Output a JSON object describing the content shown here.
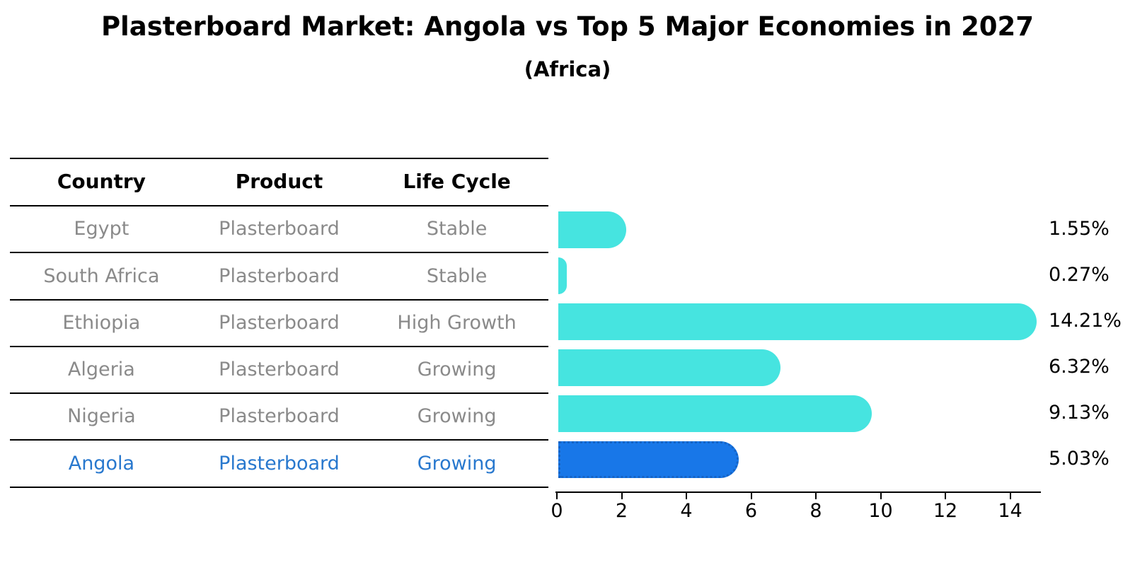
{
  "title": "Plasterboard Market: Angola vs Top 5 Major Economies in 2027",
  "subtitle": "(Africa)",
  "table": {
    "headers": [
      "Country",
      "Product",
      "Life Cycle"
    ],
    "rows": [
      {
        "country": "Egypt",
        "product": "Plasterboard",
        "life_cycle": "Stable"
      },
      {
        "country": "South Africa",
        "product": "Plasterboard",
        "life_cycle": "Stable"
      },
      {
        "country": "Ethiopia",
        "product": "Plasterboard",
        "life_cycle": "High Growth"
      },
      {
        "country": "Algeria",
        "product": "Plasterboard",
        "life_cycle": "Growing"
      },
      {
        "country": "Nigeria",
        "product": "Plasterboard",
        "life_cycle": "Growing"
      },
      {
        "country": "Angola",
        "product": "Plasterboard",
        "life_cycle": "Growing"
      }
    ]
  },
  "chart_data": {
    "type": "bar",
    "orientation": "horizontal",
    "title": "Plasterboard Market: Angola vs Top 5 Major Economies in 2027",
    "subtitle": "(Africa)",
    "categories": [
      "Egypt",
      "South Africa",
      "Ethiopia",
      "Algeria",
      "Nigeria",
      "Angola"
    ],
    "values": [
      1.55,
      0.27,
      14.21,
      6.32,
      9.13,
      5.03
    ],
    "value_labels": [
      "1.55%",
      "0.27%",
      "14.21%",
      "6.32%",
      "9.13%",
      "5.03%"
    ],
    "xticks": [
      0,
      2,
      4,
      6,
      8,
      10,
      12,
      14
    ],
    "xlim": [
      0,
      14.9
    ],
    "grid": false,
    "legend": false,
    "highlight_index": 5,
    "colors": {
      "bar": "#46E4E0",
      "highlight_bar": "#1877E8",
      "highlight_border": "#1563C4",
      "highlight_text": "#2878CE",
      "row_text": "#8A8A8A",
      "header_text": "#000000",
      "label_text": "#000000"
    }
  }
}
